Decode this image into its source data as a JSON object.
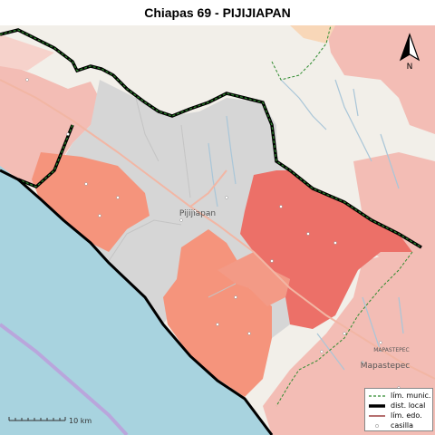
{
  "title": "Chiapas 69 - PIJIJIAPAN",
  "places": {
    "pijijiapan": "Pijijiapan",
    "mapastepec_upper": "MAPASTEPEC",
    "mapastepec": "Mapastepec"
  },
  "legend": {
    "items": [
      {
        "label": "lím. munic.",
        "icon": "dashed-green-line"
      },
      {
        "label": "dist. local",
        "icon": "thick-black-line"
      },
      {
        "label": "lím. edo.",
        "icon": "thin-red-line"
      },
      {
        "label": "casilla",
        "icon": "small-circle"
      }
    ]
  },
  "scale": {
    "label": "10 km"
  },
  "north": {
    "label": "N"
  },
  "colors": {
    "sea": "#a8d3df",
    "land": "#f2efe9",
    "district_gray": "#d6d6d6",
    "section_light": "#f3bdb5",
    "section_mid": "#f5947c",
    "section_dark": "#ec7068",
    "district_border": "#000000",
    "municipal_border": "#2e8b2e",
    "river": "#a9c6d8",
    "road": "#f2b6a4"
  }
}
